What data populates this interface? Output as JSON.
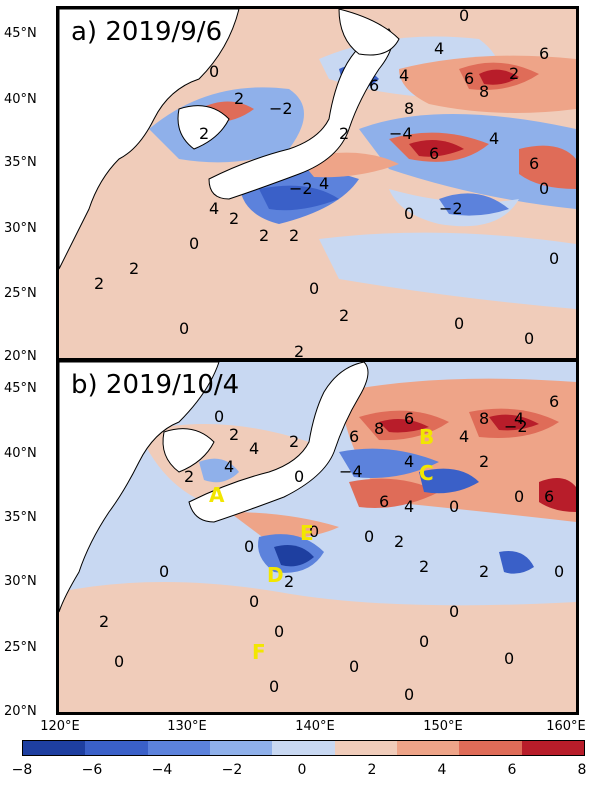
{
  "panels": [
    {
      "label": "a) 2019/9/6"
    },
    {
      "label": "b) 2019/10/4"
    }
  ],
  "lat_ticks": [
    "45°N",
    "40°N",
    "35°N",
    "30°N",
    "25°N",
    "20°N"
  ],
  "lon_ticks": [
    "120°E",
    "130°E",
    "140°E",
    "150°E",
    "160°E"
  ],
  "colorbar": {
    "ticks": [
      "−8",
      "−6",
      "−4",
      "−2",
      "0",
      "2",
      "4",
      "6",
      "8"
    ],
    "colors": [
      "#1e3fa0",
      "#3a60c8",
      "#5c82dc",
      "#8fb0ea",
      "#c8d8f2",
      "#f0ccba",
      "#eea488",
      "#df6c58",
      "#b81d2a"
    ]
  },
  "markers": [
    "A",
    "B",
    "C",
    "D",
    "E",
    "F"
  ],
  "contour_labels": [
    "0",
    "2",
    "4",
    "6",
    "8",
    "−2",
    "−4"
  ]
}
